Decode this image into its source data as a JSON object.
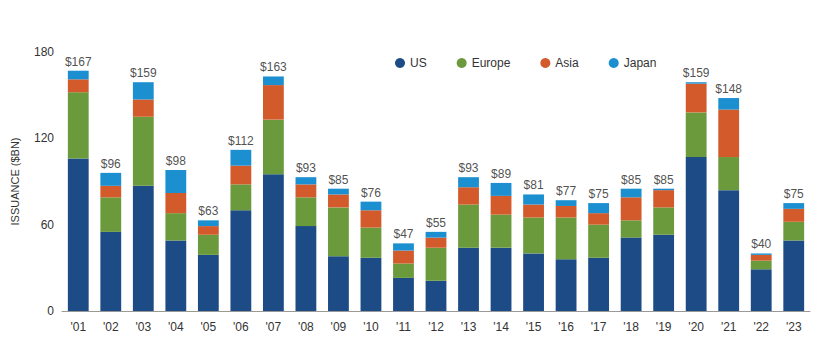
{
  "chart_data": {
    "type": "bar",
    "stacked": true,
    "ylabel": "ISSUANCE ($BN)",
    "categories": [
      "'01",
      "'02",
      "'03",
      "'04",
      "'05",
      "'06",
      "'07",
      "'08",
      "'09",
      "'10",
      "'11",
      "'12",
      "'13",
      "'14",
      "'15",
      "'16",
      "'17",
      "'18",
      "'19",
      "'20",
      "'21",
      "'22",
      "'23"
    ],
    "series": [
      {
        "name": "US",
        "color": "#1d4b85",
        "values": [
          106,
          55,
          87,
          49,
          39,
          70,
          95,
          59,
          38,
          37,
          23,
          21,
          44,
          44,
          40,
          36,
          37,
          51,
          53,
          107,
          84,
          29,
          49
        ]
      },
      {
        "name": "Europe",
        "color": "#6b9a3c",
        "values": [
          46,
          24,
          48,
          19,
          14,
          18,
          38,
          20,
          34,
          21,
          10,
          23,
          30,
          23,
          25,
          29,
          23,
          12,
          19,
          31,
          23,
          6,
          13
        ]
      },
      {
        "name": "Asia",
        "color": "#d35a2b",
        "values": [
          9,
          8,
          12,
          14,
          6,
          13,
          24,
          9,
          9,
          12,
          9,
          7,
          12,
          13,
          9,
          8,
          8,
          16,
          12,
          20,
          33,
          4,
          9
        ]
      },
      {
        "name": "Japan",
        "color": "#1c8fd1",
        "values": [
          6,
          9,
          12,
          16,
          4,
          11,
          6,
          5,
          4,
          6,
          5,
          4,
          7,
          9,
          7,
          4,
          7,
          6,
          1,
          1,
          8,
          1,
          4
        ]
      }
    ],
    "totals": [
      167,
      96,
      159,
      98,
      63,
      112,
      163,
      93,
      85,
      76,
      47,
      55,
      93,
      89,
      81,
      77,
      75,
      85,
      85,
      159,
      148,
      40,
      75
    ],
    "total_labels": [
      "$167",
      "$96",
      "$159",
      "$98",
      "$63",
      "$112",
      "$163",
      "$93",
      "$85",
      "$76",
      "$47",
      "$55",
      "$93",
      "$89",
      "$81",
      "$77",
      "$75",
      "$85",
      "$85",
      "$159",
      "$148",
      "$40",
      "$75"
    ],
    "ylim": [
      0,
      180
    ],
    "yticks": [
      0,
      60,
      120,
      180
    ],
    "grid": false,
    "legend": "top"
  }
}
